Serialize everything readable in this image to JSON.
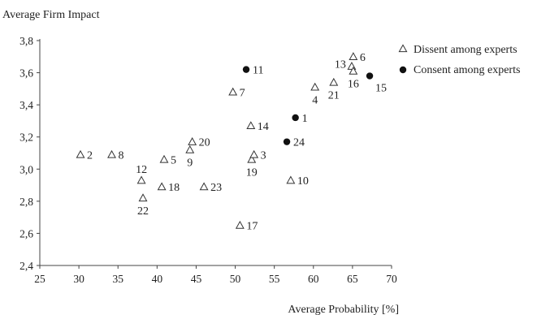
{
  "chart_data": {
    "type": "scatter",
    "xlabel": "Average Probability [%]",
    "ylabel": "Average Firm Impact",
    "xlim": [
      25,
      70
    ],
    "ylim": [
      2.4,
      3.8
    ],
    "x_ticks": [
      "25",
      "30",
      "35",
      "40",
      "45",
      "50",
      "55",
      "60",
      "65",
      "70"
    ],
    "x_tick_values": [
      25,
      30,
      35,
      40,
      45,
      50,
      55,
      60,
      65,
      70
    ],
    "y_ticks": [
      "2,4",
      "2,6",
      "2,8",
      "3,0",
      "3,2",
      "3,4",
      "3,6",
      "3,8"
    ],
    "y_tick_values": [
      2.4,
      2.6,
      2.8,
      3.0,
      3.2,
      3.4,
      3.6,
      3.8
    ],
    "legend_position": "top-right",
    "series": [
      {
        "name": "Dissent among experts",
        "marker": "open-triangle",
        "points": [
          {
            "id": "2",
            "x": 30.2,
            "y": 3.09,
            "label_pos": "right"
          },
          {
            "id": "8",
            "x": 34.2,
            "y": 3.09,
            "label_pos": "right"
          },
          {
            "id": "12",
            "x": 38.0,
            "y": 2.93,
            "label_pos": "above"
          },
          {
            "id": "22",
            "x": 38.2,
            "y": 2.82,
            "label_pos": "below"
          },
          {
            "id": "18",
            "x": 40.6,
            "y": 2.89,
            "label_pos": "right"
          },
          {
            "id": "5",
            "x": 40.9,
            "y": 3.06,
            "label_pos": "right"
          },
          {
            "id": "9",
            "x": 44.2,
            "y": 3.12,
            "label_pos": "below"
          },
          {
            "id": "20",
            "x": 44.5,
            "y": 3.17,
            "label_pos": "right"
          },
          {
            "id": "23",
            "x": 46.0,
            "y": 2.89,
            "label_pos": "right"
          },
          {
            "id": "7",
            "x": 49.7,
            "y": 3.48,
            "label_pos": "right"
          },
          {
            "id": "17",
            "x": 50.6,
            "y": 2.65,
            "label_pos": "right"
          },
          {
            "id": "14",
            "x": 52.0,
            "y": 3.27,
            "label_pos": "right"
          },
          {
            "id": "19",
            "x": 52.1,
            "y": 3.06,
            "label_pos": "below"
          },
          {
            "id": "3",
            "x": 52.4,
            "y": 3.09,
            "label_pos": "right"
          },
          {
            "id": "10",
            "x": 57.1,
            "y": 2.93,
            "label_pos": "right"
          },
          {
            "id": "4",
            "x": 60.2,
            "y": 3.51,
            "label_pos": "below"
          },
          {
            "id": "21",
            "x": 62.6,
            "y": 3.54,
            "label_pos": "below"
          },
          {
            "id": "13",
            "x": 64.9,
            "y": 3.64,
            "label_pos": "left"
          },
          {
            "id": "16",
            "x": 65.1,
            "y": 3.61,
            "label_pos": "below"
          },
          {
            "id": "6",
            "x": 65.1,
            "y": 3.7,
            "label_pos": "right"
          }
        ]
      },
      {
        "name": "Consent among experts",
        "marker": "filled-circle",
        "points": [
          {
            "id": "11",
            "x": 51.4,
            "y": 3.62,
            "label_pos": "right"
          },
          {
            "id": "1",
            "x": 57.7,
            "y": 3.32,
            "label_pos": "right"
          },
          {
            "id": "24",
            "x": 56.6,
            "y": 3.17,
            "label_pos": "right"
          },
          {
            "id": "15",
            "x": 67.2,
            "y": 3.58,
            "label_pos": "below-right"
          }
        ]
      }
    ]
  }
}
